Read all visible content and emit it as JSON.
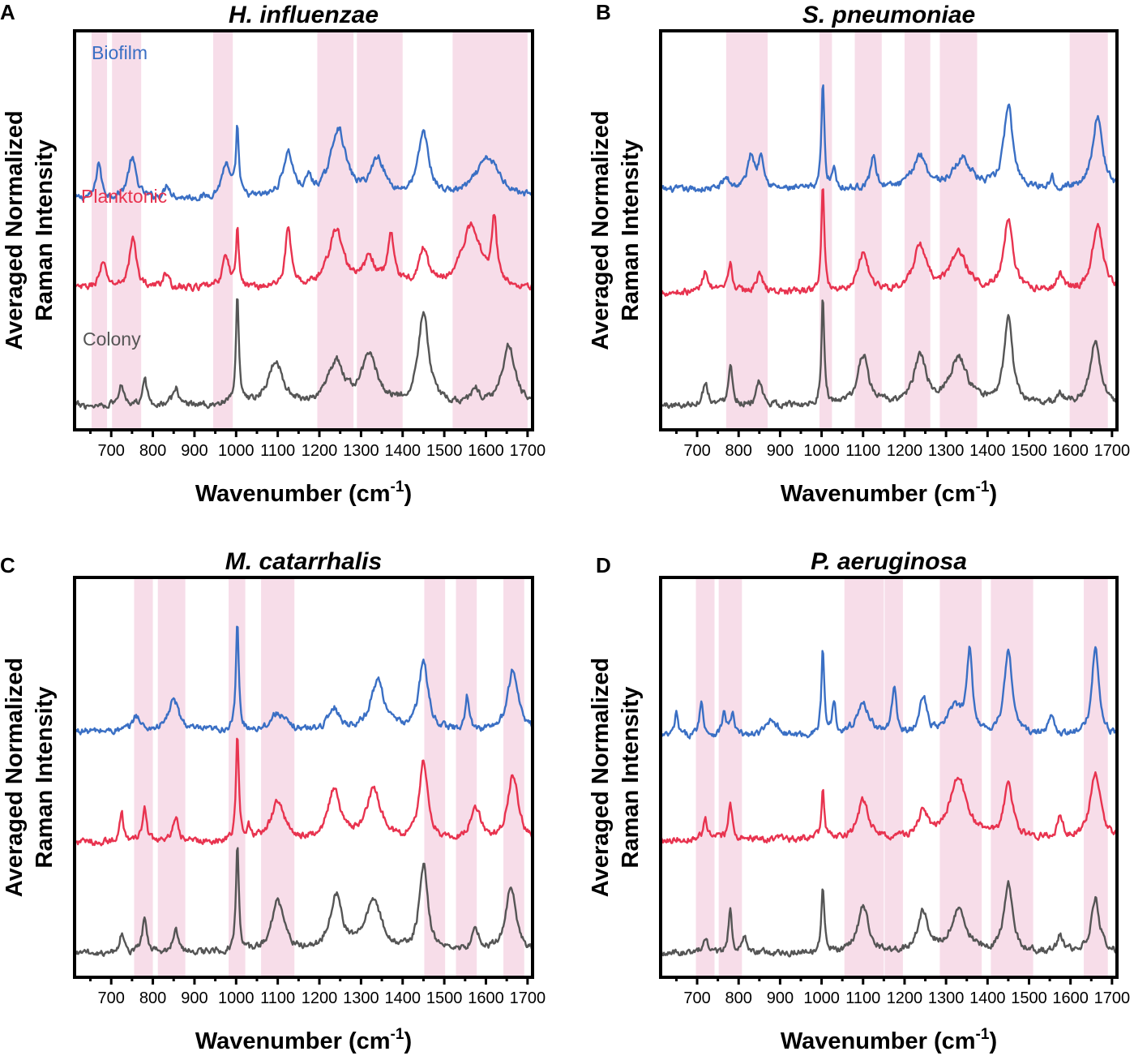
{
  "colors": {
    "biofilm": "#3a6fc4",
    "planktonic": "#e8334f",
    "colony": "#555555",
    "band": "#f7dde9",
    "frame": "#000000"
  },
  "chart_data": [
    {
      "type": "line",
      "letter": "A",
      "title": "H. influenzae",
      "xlabel": "Wavenumber (cm",
      "xlabel_sup": "-1",
      "xlabel_end": ")",
      "ylabel_line1": "Averaged Normalized",
      "ylabel_line2": "Raman Intensity",
      "xlim": [
        612,
        1712
      ],
      "xticks": [
        "700",
        "800",
        "900",
        "1000",
        "1100",
        "1200",
        "1300",
        "1400",
        "1500",
        "1600",
        "1700"
      ],
      "series_labels": [
        "Biofilm",
        "Planktonic",
        "Colony"
      ],
      "bands": [
        [
          653,
          690
        ],
        [
          702,
          772
        ],
        [
          945,
          992
        ],
        [
          1195,
          1282
        ],
        [
          1290,
          1400
        ],
        [
          1520,
          1700
        ]
      ],
      "series": [
        {
          "name": "Biofilm",
          "offset": 0.78,
          "base": 0.03,
          "peaks": [
            [
              670,
              0.33,
              7
            ],
            [
              750,
              0.36,
              12
            ],
            [
              835,
              0.12,
              8
            ],
            [
              975,
              0.3,
              12
            ],
            [
              1003,
              0.62,
              4
            ],
            [
              1125,
              0.4,
              15
            ],
            [
              1175,
              0.14,
              8
            ],
            [
              1245,
              0.62,
              22
            ],
            [
              1340,
              0.34,
              20
            ],
            [
              1450,
              0.58,
              15
            ],
            [
              1605,
              0.36,
              35
            ]
          ]
        },
        {
          "name": "Planktonic",
          "offset": 0.44,
          "base": 0.03,
          "peaks": [
            [
              680,
              0.22,
              10
            ],
            [
              752,
              0.45,
              10
            ],
            [
              830,
              0.13,
              8
            ],
            [
              975,
              0.28,
              10
            ],
            [
              1003,
              0.52,
              4
            ],
            [
              1125,
              0.55,
              8
            ],
            [
              1240,
              0.52,
              22
            ],
            [
              1320,
              0.25,
              15
            ],
            [
              1372,
              0.45,
              10
            ],
            [
              1450,
              0.32,
              14
            ],
            [
              1565,
              0.56,
              28
            ],
            [
              1620,
              0.56,
              7
            ]
          ]
        },
        {
          "name": "Colony",
          "offset": 0.0,
          "base": 0.02,
          "peaks": [
            [
              725,
              0.18,
              8
            ],
            [
              780,
              0.26,
              6
            ],
            [
              855,
              0.16,
              8
            ],
            [
              1003,
              0.98,
              4
            ],
            [
              1095,
              0.4,
              20
            ],
            [
              1240,
              0.38,
              22
            ],
            [
              1320,
              0.44,
              22
            ],
            [
              1450,
              0.82,
              15
            ],
            [
              1575,
              0.14,
              10
            ],
            [
              1655,
              0.54,
              18
            ]
          ]
        }
      ]
    },
    {
      "type": "line",
      "letter": "B",
      "title": "S. pneumoniae",
      "xlabel": "Wavenumber (cm",
      "xlabel_sup": "-1",
      "xlabel_end": ")",
      "ylabel_line1": "Averaged Normalized",
      "ylabel_line2": "Raman Intensity",
      "xlim": [
        612,
        1712
      ],
      "xticks": [
        "700",
        "800",
        "900",
        "1000",
        "1100",
        "1200",
        "1300",
        "1400",
        "1500",
        "1600",
        "1700"
      ],
      "series_labels": [],
      "bands": [
        [
          770,
          870
        ],
        [
          995,
          1025
        ],
        [
          1080,
          1145
        ],
        [
          1200,
          1262
        ],
        [
          1285,
          1375
        ],
        [
          1598,
          1690
        ]
      ],
      "series": [
        {
          "name": "Biofilm",
          "offset": 0.82,
          "base": 0.02,
          "peaks": [
            [
              770,
              0.1,
              10
            ],
            [
              830,
              0.3,
              10
            ],
            [
              855,
              0.3,
              8
            ],
            [
              1003,
              0.98,
              4
            ],
            [
              1030,
              0.2,
              5
            ],
            [
              1125,
              0.3,
              8
            ],
            [
              1237,
              0.3,
              20
            ],
            [
              1340,
              0.27,
              25
            ],
            [
              1450,
              0.75,
              13
            ],
            [
              1555,
              0.1,
              6
            ],
            [
              1665,
              0.65,
              15
            ]
          ]
        },
        {
          "name": "Planktonic",
          "offset": 0.43,
          "base": 0.02,
          "peaks": [
            [
              720,
              0.2,
              8
            ],
            [
              780,
              0.25,
              6
            ],
            [
              850,
              0.18,
              8
            ],
            [
              1003,
              0.98,
              4
            ],
            [
              1100,
              0.35,
              15
            ],
            [
              1237,
              0.4,
              18
            ],
            [
              1330,
              0.35,
              25
            ],
            [
              1450,
              0.65,
              13
            ],
            [
              1575,
              0.15,
              10
            ],
            [
              1665,
              0.62,
              15
            ]
          ]
        },
        {
          "name": "Colony",
          "offset": 0.0,
          "base": 0.02,
          "peaks": [
            [
              720,
              0.2,
              8
            ],
            [
              780,
              0.38,
              6
            ],
            [
              850,
              0.2,
              8
            ],
            [
              1003,
              0.98,
              4
            ],
            [
              1100,
              0.45,
              15
            ],
            [
              1237,
              0.42,
              18
            ],
            [
              1330,
              0.42,
              25
            ],
            [
              1450,
              0.78,
              12
            ],
            [
              1575,
              0.1,
              10
            ],
            [
              1660,
              0.58,
              15
            ]
          ]
        }
      ]
    },
    {
      "type": "line",
      "letter": "C",
      "title": "M. catarrhalis",
      "xlabel": "Wavenumber (cm",
      "xlabel_sup": "-1",
      "xlabel_end": ")",
      "ylabel_line1": "Averaged Normalized",
      "ylabel_line2": "Raman Intensity",
      "xlim": [
        612,
        1712
      ],
      "xticks": [
        "700",
        "800",
        "900",
        "1000",
        "1100",
        "1200",
        "1300",
        "1400",
        "1500",
        "1600",
        "1700"
      ],
      "series_labels": [],
      "bands": [
        [
          755,
          800
        ],
        [
          812,
          878
        ],
        [
          982,
          1022
        ],
        [
          1060,
          1140
        ],
        [
          1452,
          1502
        ],
        [
          1528,
          1578
        ],
        [
          1642,
          1692
        ]
      ],
      "series": [
        {
          "name": "Biofilm",
          "offset": 0.84,
          "base": 0.02,
          "peaks": [
            [
              760,
              0.14,
              10
            ],
            [
              850,
              0.28,
              15
            ],
            [
              1003,
              0.98,
              4
            ],
            [
              1100,
              0.16,
              20
            ],
            [
              1235,
              0.2,
              15
            ],
            [
              1340,
              0.45,
              20
            ],
            [
              1450,
              0.62,
              13
            ],
            [
              1555,
              0.3,
              5
            ],
            [
              1665,
              0.55,
              15
            ]
          ]
        },
        {
          "name": "Planktonic",
          "offset": 0.42,
          "base": 0.02,
          "peaks": [
            [
              725,
              0.28,
              5
            ],
            [
              780,
              0.3,
              6
            ],
            [
              855,
              0.2,
              8
            ],
            [
              1003,
              0.98,
              4
            ],
            [
              1030,
              0.12,
              5
            ],
            [
              1100,
              0.35,
              20
            ],
            [
              1235,
              0.45,
              18
            ],
            [
              1330,
              0.45,
              22
            ],
            [
              1450,
              0.72,
              12
            ],
            [
              1575,
              0.3,
              15
            ],
            [
              1665,
              0.6,
              15
            ]
          ]
        },
        {
          "name": "Colony",
          "offset": 0.0,
          "base": 0.02,
          "peaks": [
            [
              725,
              0.18,
              6
            ],
            [
              780,
              0.32,
              6
            ],
            [
              855,
              0.2,
              8
            ],
            [
              1003,
              0.98,
              4
            ],
            [
              1100,
              0.45,
              18
            ],
            [
              1240,
              0.5,
              18
            ],
            [
              1330,
              0.48,
              22
            ],
            [
              1450,
              0.78,
              12
            ],
            [
              1575,
              0.2,
              10
            ],
            [
              1660,
              0.6,
              15
            ]
          ]
        }
      ]
    },
    {
      "type": "line",
      "letter": "D",
      "title": "P. aeruginosa",
      "xlabel": "Wavenumber (cm",
      "xlabel_sup": "-1",
      "xlabel_end": ")",
      "ylabel_line1": "Averaged Normalized",
      "ylabel_line2": "Raman Intensity",
      "xlim": [
        612,
        1712
      ],
      "xticks": [
        "700",
        "800",
        "900",
        "1000",
        "1100",
        "1200",
        "1300",
        "1400",
        "1500",
        "1600",
        "1700"
      ],
      "series_labels": [],
      "bands": [
        [
          697,
          742
        ],
        [
          752,
          808
        ],
        [
          1055,
          1150
        ],
        [
          1152,
          1196
        ],
        [
          1285,
          1386
        ],
        [
          1408,
          1510
        ],
        [
          1632,
          1690
        ]
      ],
      "series": [
        {
          "name": "Biofilm",
          "offset": 0.82,
          "base": 0.02,
          "peaks": [
            [
              650,
              0.2,
              5
            ],
            [
              710,
              0.3,
              6
            ],
            [
              765,
              0.2,
              6
            ],
            [
              785,
              0.18,
              6
            ],
            [
              880,
              0.16,
              15
            ],
            [
              1003,
              0.78,
              4
            ],
            [
              1030,
              0.3,
              5
            ],
            [
              1100,
              0.28,
              20
            ],
            [
              1175,
              0.45,
              6
            ],
            [
              1245,
              0.35,
              10
            ],
            [
              1320,
              0.25,
              20
            ],
            [
              1357,
              0.75,
              8
            ],
            [
              1450,
              0.75,
              12
            ],
            [
              1555,
              0.2,
              8
            ],
            [
              1660,
              0.82,
              10
            ]
          ]
        },
        {
          "name": "Planktonic",
          "offset": 0.43,
          "base": 0.02,
          "peaks": [
            [
              720,
              0.18,
              6
            ],
            [
              780,
              0.3,
              6
            ],
            [
              1003,
              0.45,
              4
            ],
            [
              1100,
              0.35,
              15
            ],
            [
              1245,
              0.25,
              12
            ],
            [
              1330,
              0.55,
              25
            ],
            [
              1450,
              0.52,
              12
            ],
            [
              1575,
              0.2,
              8
            ],
            [
              1660,
              0.6,
              15
            ]
          ]
        },
        {
          "name": "Colony",
          "offset": 0.0,
          "base": 0.02,
          "peaks": [
            [
              720,
              0.15,
              6
            ],
            [
              780,
              0.4,
              5
            ],
            [
              815,
              0.15,
              5
            ],
            [
              1003,
              0.58,
              4
            ],
            [
              1100,
              0.42,
              15
            ],
            [
              1245,
              0.35,
              15
            ],
            [
              1330,
              0.38,
              22
            ],
            [
              1450,
              0.62,
              12
            ],
            [
              1575,
              0.15,
              8
            ],
            [
              1660,
              0.48,
              12
            ]
          ]
        }
      ]
    }
  ]
}
